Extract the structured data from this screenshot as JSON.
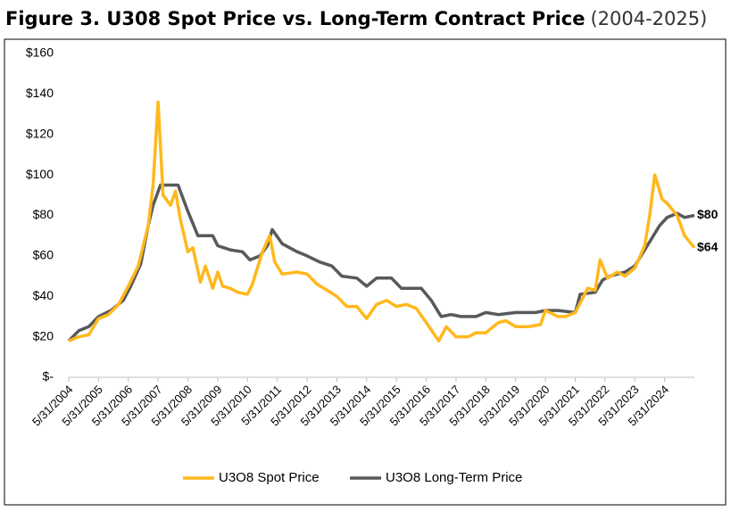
{
  "chart_data": {
    "type": "line",
    "title": "Figure 3. U308 Spot Price vs. Long-Term Contract Price",
    "subtitle": "(2004-2025)",
    "xlim": [
      "2004-05-31",
      "2025-05-31"
    ],
    "xticks": [
      {
        "value": "2004-05-31",
        "label": "5/31/2004"
      },
      {
        "value": "2005-05-31",
        "label": "5/31/2005"
      },
      {
        "value": "2006-05-31",
        "label": "5/31/2006"
      },
      {
        "value": "2007-05-31",
        "label": "5/31/2007"
      },
      {
        "value": "2008-05-31",
        "label": "5/31/2008"
      },
      {
        "value": "2009-05-31",
        "label": "5/31/2009"
      },
      {
        "value": "2010-05-31",
        "label": "5/31/2010"
      },
      {
        "value": "2011-05-31",
        "label": "5/31/2011"
      },
      {
        "value": "2012-05-31",
        "label": "5/31/2012"
      },
      {
        "value": "2013-05-31",
        "label": "5/31/2013"
      },
      {
        "value": "2014-05-31",
        "label": "5/31/2014"
      },
      {
        "value": "2015-05-31",
        "label": "5/31/2015"
      },
      {
        "value": "2016-05-31",
        "label": "5/31/2016"
      },
      {
        "value": "2017-05-31",
        "label": "5/31/2017"
      },
      {
        "value": "2018-05-31",
        "label": "5/31/2018"
      },
      {
        "value": "2019-05-31",
        "label": "5/31/2019"
      },
      {
        "value": "2020-05-31",
        "label": "5/31/2020"
      },
      {
        "value": "2021-05-31",
        "label": "5/31/2021"
      },
      {
        "value": "2022-05-31",
        "label": "5/31/2022"
      },
      {
        "value": "2023-05-31",
        "label": "5/31/2023"
      },
      {
        "value": "2024-05-31",
        "label": "5/31/2024"
      }
    ],
    "ylim": [
      0,
      160
    ],
    "yticks": [
      {
        "value": 0,
        "label": "$-"
      },
      {
        "value": 20,
        "label": "$20"
      },
      {
        "value": 40,
        "label": "$40"
      },
      {
        "value": 60,
        "label": "$60"
      },
      {
        "value": 80,
        "label": "$80"
      },
      {
        "value": 100,
        "label": "$100"
      },
      {
        "value": 120,
        "label": "$120"
      },
      {
        "value": 140,
        "label": "$140"
      },
      {
        "value": 160,
        "label": "$160"
      }
    ],
    "grid": false,
    "legend": "bottom",
    "series": [
      {
        "name": "U3O8 Spot Price",
        "color": "#FFB81C",
        "end_label": "$64",
        "x": [
          "2004-05-31",
          "2004-09-30",
          "2005-01-31",
          "2005-05-31",
          "2005-09-30",
          "2006-01-31",
          "2006-05-31",
          "2006-09-30",
          "2007-01-31",
          "2007-03-31",
          "2007-05-31",
          "2007-07-31",
          "2007-10-31",
          "2007-12-31",
          "2008-02-29",
          "2008-05-31",
          "2008-07-31",
          "2008-10-31",
          "2008-12-31",
          "2009-03-31",
          "2009-05-31",
          "2009-07-31",
          "2009-10-31",
          "2010-01-31",
          "2010-05-31",
          "2010-07-31",
          "2010-11-30",
          "2011-02-28",
          "2011-04-30",
          "2011-07-31",
          "2012-01-31",
          "2012-05-31",
          "2012-09-30",
          "2013-01-31",
          "2013-05-31",
          "2013-09-30",
          "2014-01-31",
          "2014-05-31",
          "2014-09-30",
          "2015-01-31",
          "2015-05-31",
          "2015-09-30",
          "2016-01-31",
          "2016-05-31",
          "2016-10-31",
          "2017-01-31",
          "2017-05-31",
          "2017-10-31",
          "2018-01-31",
          "2018-05-31",
          "2018-10-31",
          "2019-01-31",
          "2019-05-31",
          "2019-10-31",
          "2020-03-31",
          "2020-05-31",
          "2020-10-31",
          "2021-01-31",
          "2021-05-31",
          "2021-10-31",
          "2022-01-31",
          "2022-03-31",
          "2022-06-30",
          "2022-10-31",
          "2023-01-31",
          "2023-05-31",
          "2023-09-30",
          "2023-11-30",
          "2024-01-31",
          "2024-04-30",
          "2024-06-30",
          "2024-10-31",
          "2025-01-31",
          "2025-05-31"
        ],
        "values": [
          18,
          20,
          21,
          29,
          31,
          36,
          45,
          55,
          75,
          95,
          136,
          90,
          85,
          92,
          78,
          62,
          64,
          47,
          55,
          44,
          52,
          45,
          44,
          42,
          41,
          46,
          62,
          70,
          57,
          51,
          52,
          51,
          46,
          43,
          40,
          35,
          35,
          29,
          36,
          38,
          35,
          36,
          34,
          27,
          18,
          25,
          20,
          20,
          22,
          22,
          27,
          28,
          25,
          25,
          26,
          33,
          30,
          30,
          32,
          44,
          43,
          58,
          49,
          52,
          50,
          54,
          65,
          80,
          100,
          88,
          86,
          80,
          70,
          64
        ]
      },
      {
        "name": "U3O8 Long-Term Price",
        "color": "#58595B",
        "end_label": "$80",
        "x": [
          "2004-05-31",
          "2004-09-30",
          "2005-01-31",
          "2005-05-31",
          "2005-10-31",
          "2006-03-31",
          "2006-06-30",
          "2006-10-31",
          "2007-01-31",
          "2007-03-31",
          "2007-06-30",
          "2008-01-31",
          "2008-05-31",
          "2008-09-30",
          "2009-03-31",
          "2009-05-31",
          "2009-10-31",
          "2010-03-31",
          "2010-06-30",
          "2010-10-31",
          "2011-01-31",
          "2011-03-31",
          "2011-07-31",
          "2012-01-31",
          "2012-05-31",
          "2012-10-31",
          "2013-03-31",
          "2013-07-31",
          "2014-01-31",
          "2014-05-31",
          "2014-09-30",
          "2015-03-31",
          "2015-07-31",
          "2016-03-31",
          "2016-07-31",
          "2016-11-30",
          "2017-03-31",
          "2017-07-31",
          "2018-01-31",
          "2018-05-31",
          "2018-10-31",
          "2019-05-31",
          "2020-01-31",
          "2020-05-31",
          "2020-10-31",
          "2021-05-31",
          "2021-07-31",
          "2022-01-31",
          "2022-04-30",
          "2022-07-31",
          "2023-01-31",
          "2023-05-31",
          "2023-10-31",
          "2024-03-31",
          "2024-06-30",
          "2024-10-31",
          "2025-01-31",
          "2025-05-31"
        ],
        "values": [
          18,
          23,
          25,
          30,
          33,
          38,
          45,
          56,
          75,
          85,
          95,
          95,
          82,
          70,
          70,
          65,
          63,
          62,
          58,
          60,
          65,
          73,
          66,
          62,
          60,
          57,
          55,
          50,
          49,
          45,
          49,
          49,
          44,
          44,
          38,
          30,
          31,
          30,
          30,
          32,
          31,
          32,
          32,
          33,
          33,
          32,
          41,
          42,
          48,
          50,
          52,
          55,
          65,
          75,
          79,
          81,
          79,
          80
        ]
      }
    ]
  }
}
